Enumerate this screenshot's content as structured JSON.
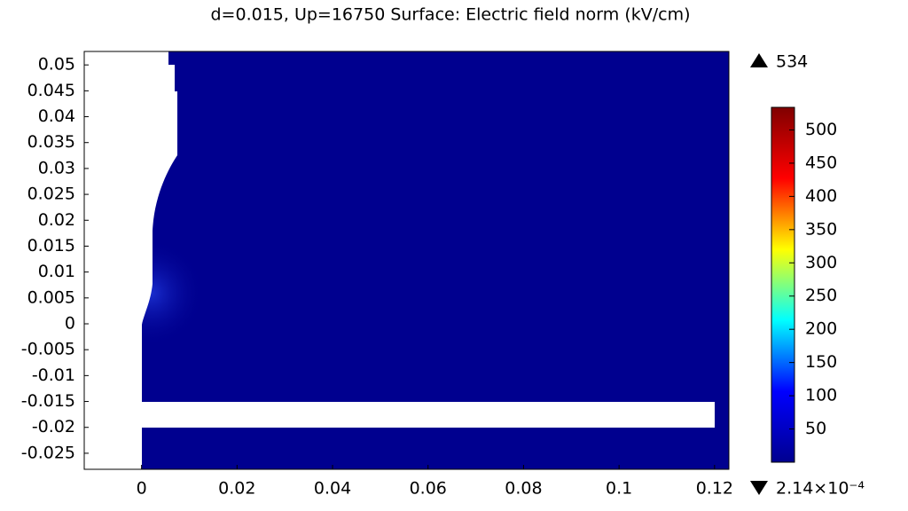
{
  "chart_data": {
    "type": "surface",
    "title": "d=0.015, Up=16750   Surface: Electric field norm (kV/cm)",
    "xlim": [
      -0.012,
      0.123
    ],
    "xticks": [
      0,
      0.02,
      0.04,
      0.06,
      0.08,
      0.1,
      0.12
    ],
    "ylim": [
      -0.0281,
      0.0526
    ],
    "yticks": [
      0.05,
      0.045,
      0.04,
      0.035,
      0.03,
      0.025,
      0.02,
      0.015,
      0.01,
      0.005,
      0,
      -0.005,
      -0.01,
      -0.015,
      -0.02,
      -0.025
    ],
    "clim": [
      {
        "value": 0.000214,
        "label": "2.14×10⁻⁴"
      },
      534
    ],
    "cticks": [
      50,
      100,
      150,
      200,
      250,
      300,
      350,
      400,
      450,
      500
    ],
    "colormap": [
      "#00008f",
      "#0000ff",
      "#00ffff",
      "#ffff00",
      "#ff0000",
      "#800000"
    ]
  }
}
